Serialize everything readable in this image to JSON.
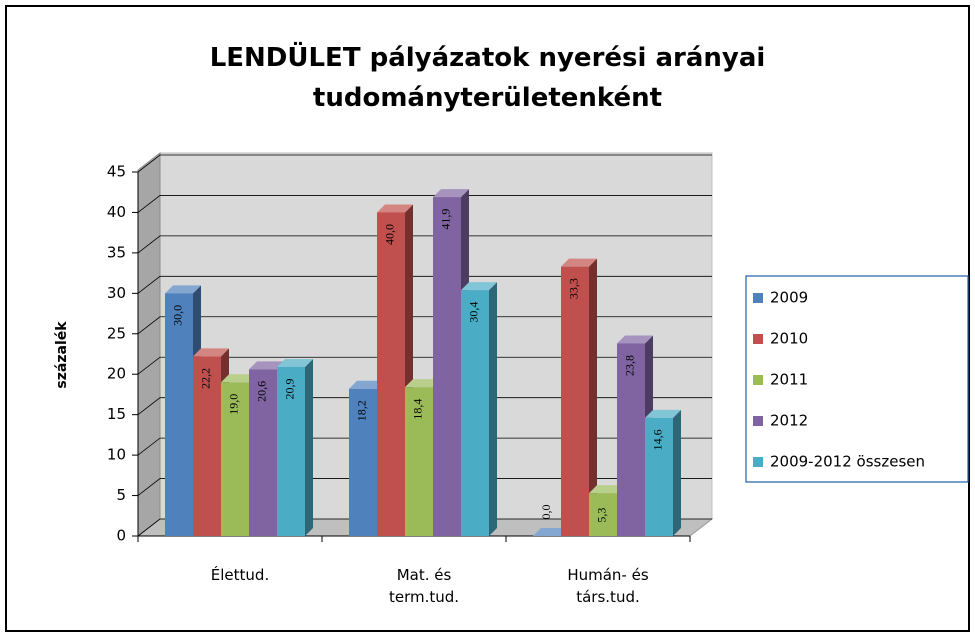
{
  "chart_data": {
    "type": "bar3d",
    "title": "LENDÜLET pályázatok nyerési arányai tudományterületenként",
    "y_axis_label": "százalék",
    "categories": [
      "Élettud.",
      "Mat. és term.tud.",
      "Humán- és társ.tud."
    ],
    "series": [
      {
        "name": "2009",
        "color": "#4f81bd",
        "values": [
          30.0,
          18.2,
          0.0
        ],
        "value_labels": [
          "30,0",
          "18,2",
          "0,0"
        ]
      },
      {
        "name": "2010",
        "color": "#c0504d",
        "values": [
          22.2,
          40.0,
          33.3
        ],
        "value_labels": [
          "22,2",
          "40,0",
          "33,3"
        ]
      },
      {
        "name": "2011",
        "color": "#9bbb59",
        "values": [
          19.0,
          18.4,
          5.3
        ],
        "value_labels": [
          "19,0",
          "18,4",
          "5,3"
        ]
      },
      {
        "name": "2012",
        "color": "#8064a2",
        "values": [
          20.6,
          41.9,
          23.8
        ],
        "value_labels": [
          "20,6",
          "41,9",
          "23,8"
        ]
      },
      {
        "name": "2009-2012 összesen",
        "color": "#4bacc6",
        "values": [
          20.9,
          30.4,
          14.6
        ],
        "value_labels": [
          "20,9",
          "30,4",
          "14,6"
        ]
      }
    ],
    "ylim": [
      0,
      45
    ],
    "yticks": [
      0,
      5,
      10,
      15,
      20,
      25,
      30,
      35,
      40,
      45
    ],
    "grid": true,
    "legend": "right"
  }
}
